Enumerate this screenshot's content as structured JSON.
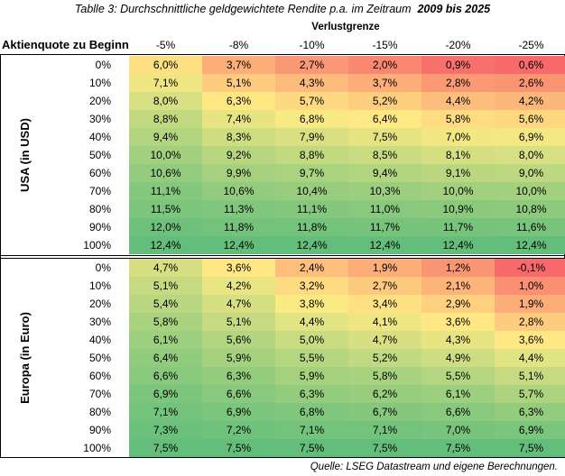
{
  "title": {
    "prefix": "Tablle 3: Durchschnittliche geldgewichtete Rendite p.a. im Zeitraum",
    "period": "2009 bis 2025"
  },
  "header": {
    "row_label": "Aktienquote zu Beginn",
    "group_label": "Verlustgrenze",
    "columns": [
      "-5%",
      "-8%",
      "-10%",
      "-15%",
      "-20%",
      "-25%"
    ]
  },
  "blocks": [
    {
      "label": "USA (in USD)",
      "rows": [
        {
          "quota": "0%",
          "values": [
            "6,0%",
            "3,7%",
            "2,7%",
            "2,0%",
            "0,9%",
            "0,6%"
          ]
        },
        {
          "quota": "10%",
          "values": [
            "7,1%",
            "5,1%",
            "4,3%",
            "3,7%",
            "2,8%",
            "2,6%"
          ]
        },
        {
          "quota": "20%",
          "values": [
            "8,0%",
            "6,3%",
            "5,7%",
            "5,2%",
            "4,4%",
            "4,2%"
          ]
        },
        {
          "quota": "30%",
          "values": [
            "8,8%",
            "7,4%",
            "6,8%",
            "6,4%",
            "5,8%",
            "5,6%"
          ]
        },
        {
          "quota": "40%",
          "values": [
            "9,4%",
            "8,3%",
            "7,9%",
            "7,5%",
            "7,0%",
            "6,9%"
          ]
        },
        {
          "quota": "50%",
          "values": [
            "10,0%",
            "9,2%",
            "8,8%",
            "8,5%",
            "8,1%",
            "8,0%"
          ]
        },
        {
          "quota": "60%",
          "values": [
            "10,6%",
            "9,9%",
            "9,7%",
            "9,4%",
            "9,1%",
            "9,0%"
          ]
        },
        {
          "quota": "70%",
          "values": [
            "11,1%",
            "10,6%",
            "10,4%",
            "10,3%",
            "10,0%",
            "10,0%"
          ]
        },
        {
          "quota": "80%",
          "values": [
            "11,5%",
            "11,3%",
            "11,1%",
            "11,0%",
            "10,9%",
            "10,8%"
          ]
        },
        {
          "quota": "90%",
          "values": [
            "12,0%",
            "11,8%",
            "11,8%",
            "11,7%",
            "11,7%",
            "11,6%"
          ]
        },
        {
          "quota": "100%",
          "values": [
            "12,4%",
            "12,4%",
            "12,4%",
            "12,4%",
            "12,4%",
            "12,4%"
          ]
        }
      ]
    },
    {
      "label": "Europa (in Euro)",
      "rows": [
        {
          "quota": "0%",
          "values": [
            "4,7%",
            "3,6%",
            "2,4%",
            "1,9%",
            "1,2%",
            "-0,1%"
          ]
        },
        {
          "quota": "10%",
          "values": [
            "5,1%",
            "4,2%",
            "3,2%",
            "2,7%",
            "2,1%",
            "1,0%"
          ]
        },
        {
          "quota": "20%",
          "values": [
            "5,4%",
            "4,7%",
            "3,8%",
            "3,4%",
            "2,9%",
            "1,9%"
          ]
        },
        {
          "quota": "30%",
          "values": [
            "5,8%",
            "5,1%",
            "4,4%",
            "4,1%",
            "3,6%",
            "2,8%"
          ]
        },
        {
          "quota": "40%",
          "values": [
            "6,1%",
            "5,6%",
            "5,0%",
            "4,7%",
            "4,3%",
            "3,6%"
          ]
        },
        {
          "quota": "50%",
          "values": [
            "6,4%",
            "5,9%",
            "5,5%",
            "5,2%",
            "4,9%",
            "4,4%"
          ]
        },
        {
          "quota": "60%",
          "values": [
            "6,6%",
            "6,3%",
            "5,9%",
            "5,8%",
            "5,5%",
            "5,1%"
          ]
        },
        {
          "quota": "70%",
          "values": [
            "6,9%",
            "6,6%",
            "6,3%",
            "6,2%",
            "6,1%",
            "5,7%"
          ]
        },
        {
          "quota": "80%",
          "values": [
            "7,1%",
            "6,9%",
            "6,8%",
            "6,7%",
            "6,6%",
            "6,3%"
          ]
        },
        {
          "quota": "90%",
          "values": [
            "7,3%",
            "7,2%",
            "7,1%",
            "7,1%",
            "7,0%",
            "6,9%"
          ]
        },
        {
          "quota": "100%",
          "values": [
            "7,5%",
            "7,5%",
            "7,5%",
            "7,5%",
            "7,5%",
            "7,5%"
          ]
        }
      ]
    }
  ],
  "colors": {
    "low": "#f8696b",
    "mid": "#ffeb84",
    "high": "#63be7b"
  },
  "source": "Quelle: LSEG Datastream und eigene Berechnungen."
}
